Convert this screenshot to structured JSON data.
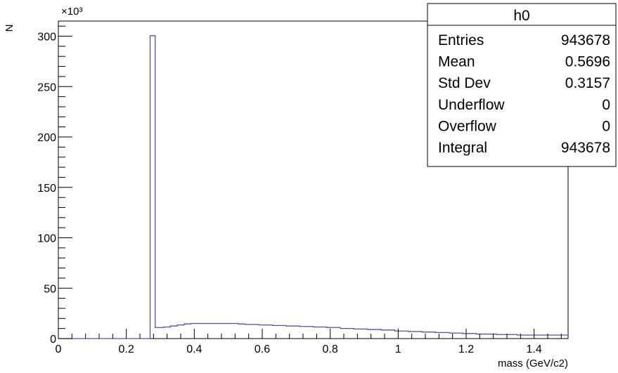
{
  "chart_data": {
    "type": "histogram",
    "title": "",
    "xlabel": "mass (GeV/c2)",
    "ylabel": "N",
    "y_multiplier": "×10³",
    "xlim": [
      0,
      1.5
    ],
    "ylim": [
      0,
      315
    ],
    "grid": false,
    "x_ticks": [
      "0",
      "0.2",
      "0.4",
      "0.6",
      "0.8",
      "1",
      "1.2",
      "1.4"
    ],
    "x_tick_values": [
      0,
      0.2,
      0.4,
      0.6,
      0.8,
      1.0,
      1.2,
      1.4
    ],
    "y_ticks": [
      "0",
      "50",
      "100",
      "150",
      "200",
      "250",
      "300"
    ],
    "y_tick_values": [
      0,
      50,
      100,
      150,
      200,
      250,
      300
    ],
    "line_color": "#5050b4",
    "series": [
      {
        "bins": [
          [
            0.0,
            0.27,
            0
          ],
          [
            0.27,
            0.285,
            300.5
          ],
          [
            0.285,
            0.31,
            11
          ],
          [
            0.31,
            0.33,
            11.5
          ],
          [
            0.33,
            0.35,
            12.5
          ],
          [
            0.35,
            0.37,
            13.5
          ],
          [
            0.37,
            0.39,
            14.5
          ],
          [
            0.39,
            0.41,
            15
          ],
          [
            0.41,
            0.53,
            15
          ],
          [
            0.53,
            0.55,
            14.5
          ],
          [
            0.55,
            0.59,
            14
          ],
          [
            0.59,
            0.63,
            13.5
          ],
          [
            0.63,
            0.67,
            13
          ],
          [
            0.67,
            0.71,
            12.5
          ],
          [
            0.71,
            0.75,
            12
          ],
          [
            0.75,
            0.79,
            11.5
          ],
          [
            0.79,
            0.83,
            11
          ],
          [
            0.83,
            0.87,
            10
          ],
          [
            0.87,
            0.91,
            9.5
          ],
          [
            0.91,
            0.95,
            9
          ],
          [
            0.95,
            0.99,
            8.5
          ],
          [
            0.99,
            1.03,
            7.5
          ],
          [
            1.03,
            1.07,
            7
          ],
          [
            1.07,
            1.11,
            6.5
          ],
          [
            1.11,
            1.15,
            6
          ],
          [
            1.15,
            1.19,
            5.5
          ],
          [
            1.19,
            1.23,
            5
          ],
          [
            1.23,
            1.29,
            4.5
          ],
          [
            1.29,
            1.35,
            4
          ],
          [
            1.35,
            1.41,
            3.5
          ],
          [
            1.41,
            1.5,
            3.5
          ]
        ]
      }
    ]
  },
  "stats_box": {
    "title": "h0",
    "rows": [
      {
        "label": "Entries",
        "value": "943678"
      },
      {
        "label": "Mean",
        "value": "0.5696"
      },
      {
        "label": "Std Dev",
        "value": "0.3157"
      },
      {
        "label": "Underflow",
        "value": "0"
      },
      {
        "label": "Overflow",
        "value": "0"
      },
      {
        "label": "Integral",
        "value": "943678"
      }
    ]
  }
}
